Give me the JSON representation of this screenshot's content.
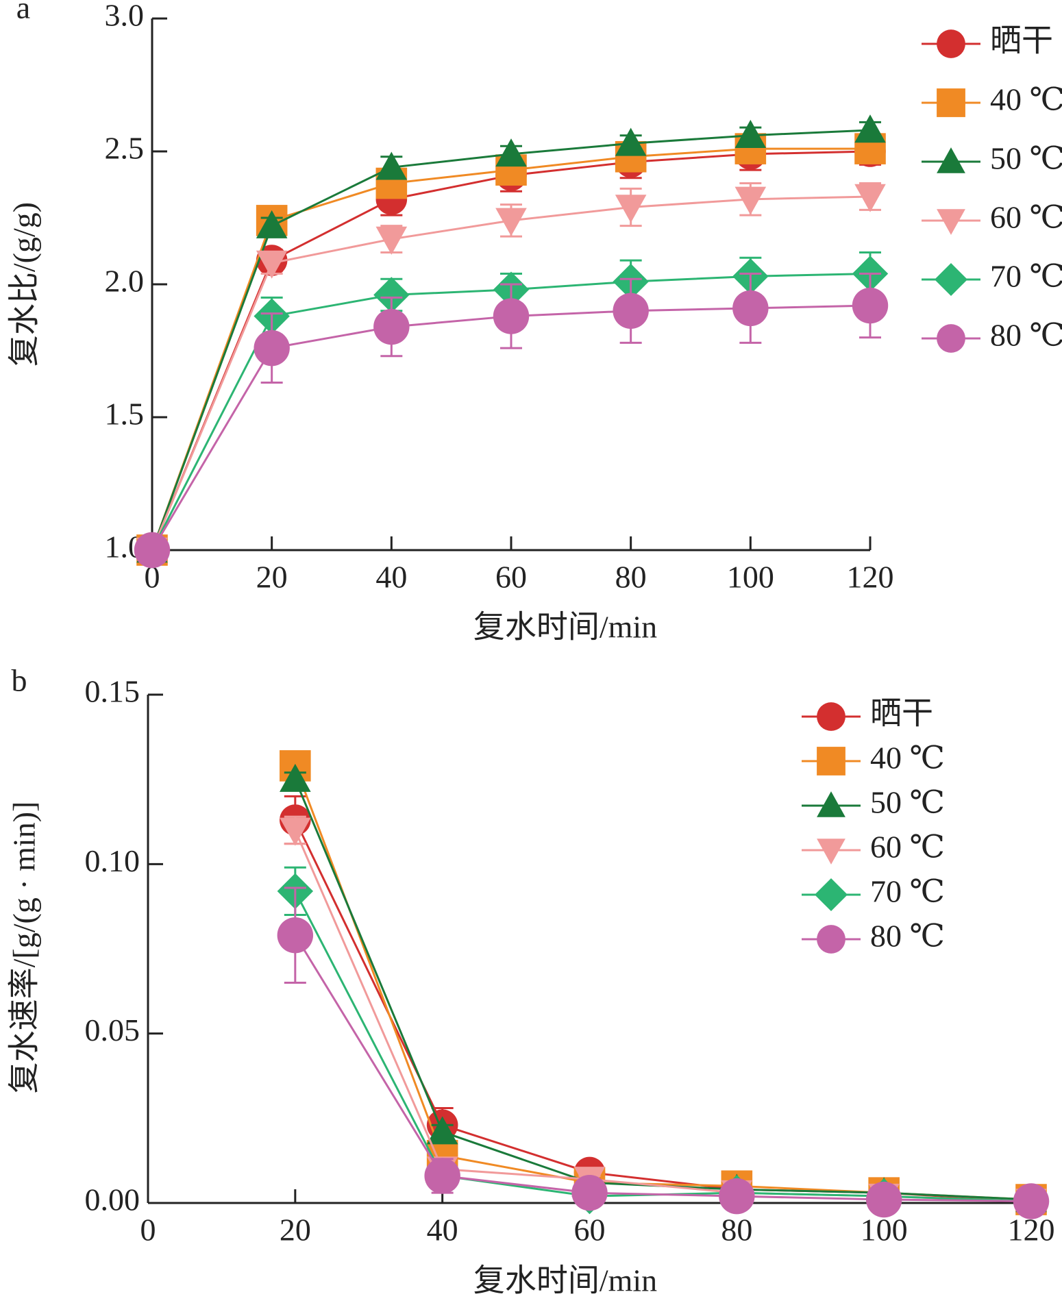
{
  "chart_data": [
    {
      "type": "line",
      "panel": "a",
      "xlabel": "复水时间/min",
      "ylabel": "复水比/(g/g)",
      "x": [
        0,
        20,
        40,
        60,
        80,
        100,
        120
      ],
      "xlim": [
        0,
        120
      ],
      "xticks": [
        0,
        20,
        40,
        60,
        80,
        100,
        120
      ],
      "ylim": [
        1.0,
        3.0
      ],
      "yticks": [
        {
          "value": 1.0,
          "label": "1.0"
        },
        {
          "value": 1.5,
          "label": "1.5"
        },
        {
          "value": 2.0,
          "label": "2.0"
        },
        {
          "value": 2.5,
          "label": "2.5"
        },
        {
          "value": 3.0,
          "label": "3.0"
        }
      ],
      "legend": "upper right",
      "series": [
        {
          "name": "晒干",
          "color": "#d32f2f",
          "marker": "circle",
          "values": [
            1.0,
            2.09,
            2.32,
            2.41,
            2.46,
            2.49,
            2.5
          ],
          "errors": [
            0,
            0.04,
            0.06,
            0.06,
            0.06,
            0.06,
            0.05
          ]
        },
        {
          "name": "40 ℃",
          "color": "#f08a24",
          "marker": "square",
          "values": [
            1.0,
            2.24,
            2.38,
            2.43,
            2.48,
            2.51,
            2.51
          ],
          "errors": [
            0,
            0.02,
            0.03,
            0.03,
            0.03,
            0.03,
            0.03
          ]
        },
        {
          "name": "50 ℃",
          "color": "#1a7a3a",
          "marker": "triangle-up",
          "values": [
            1.0,
            2.22,
            2.44,
            2.49,
            2.53,
            2.56,
            2.58
          ],
          "errors": [
            0,
            0.03,
            0.04,
            0.03,
            0.03,
            0.03,
            0.03
          ]
        },
        {
          "name": "60 ℃",
          "color": "#f19a9a",
          "marker": "triangle-down",
          "values": [
            1.0,
            2.08,
            2.17,
            2.24,
            2.29,
            2.32,
            2.33
          ],
          "errors": [
            0,
            0.04,
            0.05,
            0.06,
            0.07,
            0.06,
            0.05
          ]
        },
        {
          "name": "70 ℃",
          "color": "#2cb573",
          "marker": "diamond",
          "values": [
            1.0,
            1.88,
            1.96,
            1.98,
            2.01,
            2.03,
            2.04
          ],
          "errors": [
            0,
            0.07,
            0.06,
            0.06,
            0.08,
            0.07,
            0.08
          ]
        },
        {
          "name": "80 ℃",
          "color": "#c464a8",
          "marker": "circle",
          "values": [
            1.0,
            1.76,
            1.84,
            1.88,
            1.9,
            1.91,
            1.92
          ],
          "errors": [
            0,
            0.13,
            0.11,
            0.12,
            0.12,
            0.13,
            0.12
          ]
        }
      ]
    },
    {
      "type": "line",
      "panel": "b",
      "xlabel": "复水时间/min",
      "ylabel": "复水速率/[g/(g · min)]",
      "x": [
        20,
        40,
        60,
        80,
        100,
        120
      ],
      "xlim": [
        0,
        120
      ],
      "xticks": [
        0,
        20,
        40,
        60,
        80,
        100,
        120
      ],
      "ylim": [
        0,
        0.15
      ],
      "yticks": [
        {
          "value": 0,
          "label": "0.00"
        },
        {
          "value": 0.05,
          "label": "0.05"
        },
        {
          "value": 0.1,
          "label": "0.10"
        },
        {
          "value": 0.15,
          "label": "0.15"
        }
      ],
      "legend": "upper right",
      "series": [
        {
          "name": "晒干",
          "color": "#d32f2f",
          "marker": "circle",
          "values": [
            0.113,
            0.023,
            0.009,
            0.004,
            0.003,
            0.0005
          ],
          "errors": [
            0.007,
            0.005,
            0.003,
            0.001,
            0.001,
            0.0005
          ]
        },
        {
          "name": "40 ℃",
          "color": "#f08a24",
          "marker": "square",
          "values": [
            0.129,
            0.014,
            0.006,
            0.005,
            0.003,
            0.001
          ],
          "errors": [
            0.002,
            0.002,
            0.001,
            0.001,
            0.001,
            0.0005
          ]
        },
        {
          "name": "50 ℃",
          "color": "#1a7a3a",
          "marker": "triangle-up",
          "values": [
            0.125,
            0.021,
            0.006,
            0.004,
            0.003,
            0.001
          ],
          "errors": [
            0.002,
            0.002,
            0.001,
            0.001,
            0.001,
            0.0005
          ]
        },
        {
          "name": "60 ℃",
          "color": "#f19a9a",
          "marker": "triangle-down",
          "values": [
            0.11,
            0.01,
            0.007,
            0.003,
            0.002,
            0.0005
          ],
          "errors": [
            0.004,
            0.003,
            0.001,
            0.001,
            0.001,
            0.0005
          ]
        },
        {
          "name": "70 ℃",
          "color": "#2cb573",
          "marker": "diamond",
          "values": [
            0.092,
            0.008,
            0.002,
            0.003,
            0.002,
            0.0005
          ],
          "errors": [
            0.007,
            0.003,
            0.001,
            0.001,
            0.001,
            0.0005
          ]
        },
        {
          "name": "80 ℃",
          "color": "#c464a8",
          "marker": "circle",
          "values": [
            0.079,
            0.008,
            0.003,
            0.002,
            0.001,
            0.0005
          ],
          "errors": [
            0.014,
            0.005,
            0.001,
            0.001,
            0.001,
            0.0005
          ]
        }
      ]
    }
  ]
}
